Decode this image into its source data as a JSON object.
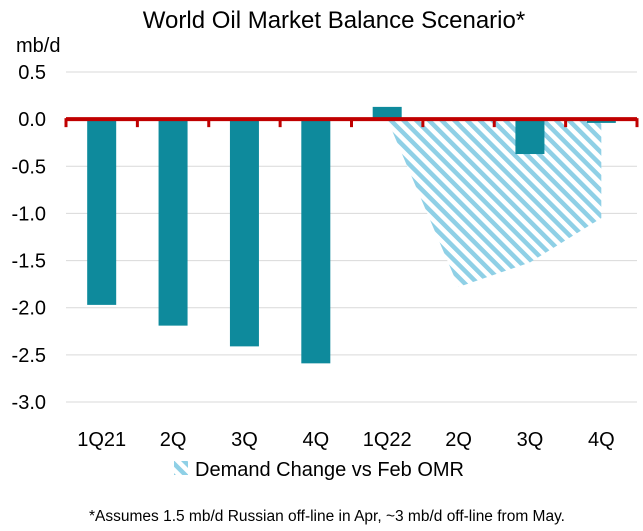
{
  "chart_data": {
    "type": "bar",
    "title": "World Oil Market Balance Scenario*",
    "ylabel": "mb/d",
    "xlabel": "",
    "categories": [
      "1Q21",
      "2Q",
      "3Q",
      "4Q",
      "1Q22",
      "2Q",
      "3Q",
      "4Q"
    ],
    "series": [
      {
        "values": [
          -1.97,
          -2.19,
          -2.41,
          -2.59,
          0.13,
          null,
          -0.37,
          -0.04
        ],
        "color": "#0e8a9c"
      }
    ],
    "demand_change_area": {
      "name": "Demand Change vs Feb OMR",
      "categories": [
        "1Q22",
        "2Q",
        "3Q",
        "4Q"
      ],
      "values": [
        -0.1,
        -1.78,
        -1.52,
        -1.05
      ],
      "color": "#8fd0e6"
    },
    "ylim": [
      -3.0,
      0.5
    ],
    "yticks": [
      "0.5",
      "0.0",
      "-0.5",
      "-1.0",
      "-1.5",
      "-2.0",
      "-2.5",
      "-3.0"
    ],
    "zero_line_color": "#c00000",
    "grid": true,
    "legend": "bottom-center",
    "footnote": "*Assumes 1.5 mb/d Russian off-line in Apr, ~3 mb/d off-line from May."
  }
}
